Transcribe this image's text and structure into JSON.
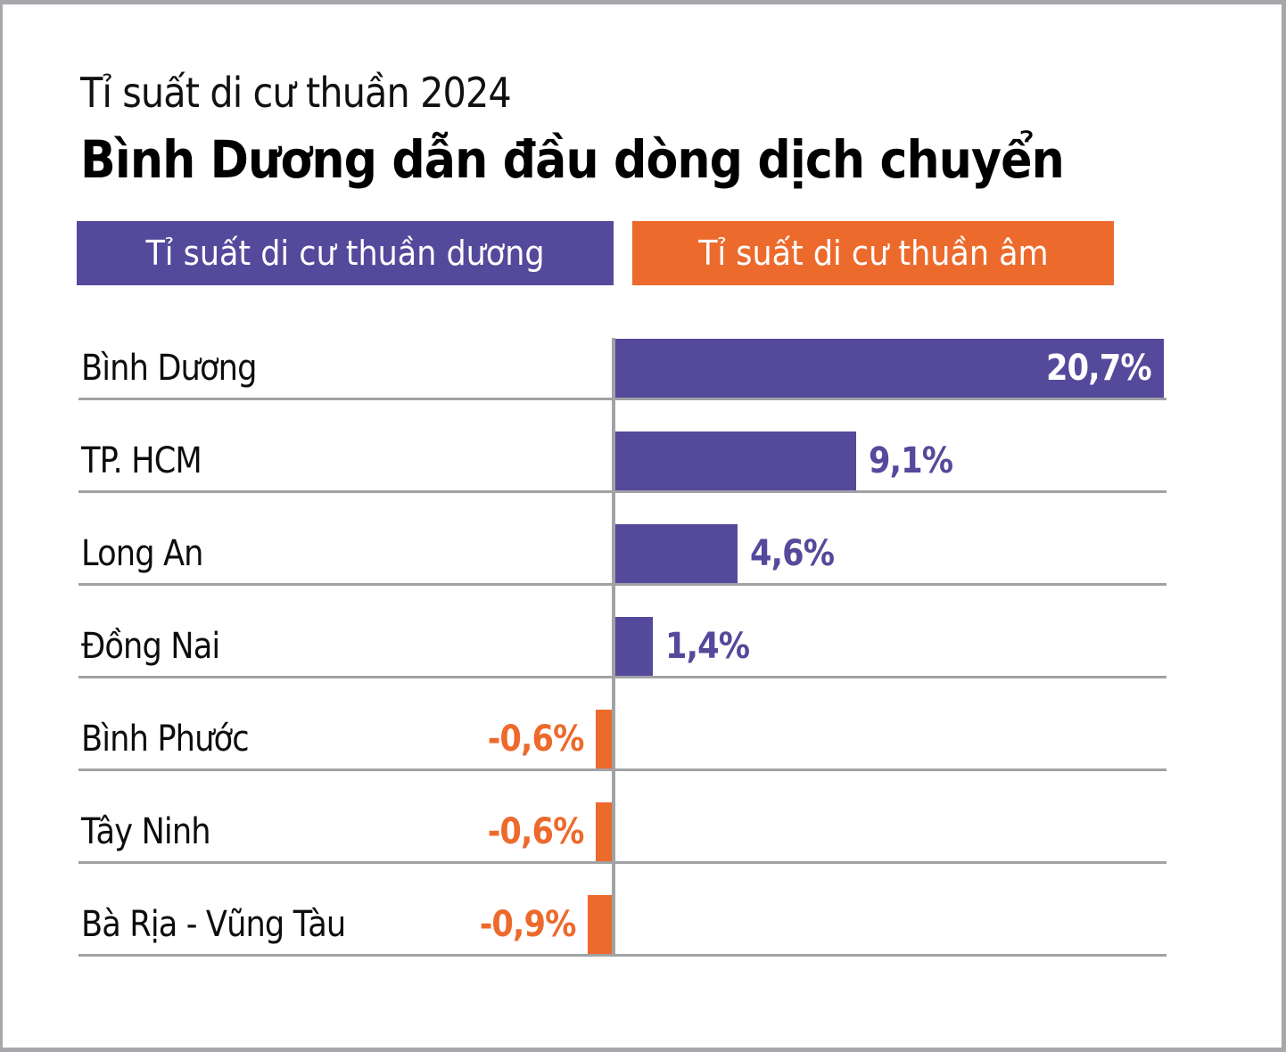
{
  "header": {
    "subtitle": "Tỉ suất di cư thuần 2024",
    "title": "Bình Dương dẫn đầu dòng dịch chuyển"
  },
  "legend": {
    "positive_label": "Tỉ suất di cư thuần dương",
    "negative_label": "Tỉ suất di cư thuần âm"
  },
  "colors": {
    "positive": "#54499B",
    "negative": "#ED6A2D",
    "grid_line": "#A0A2A5",
    "frame_border": "#A6A8AB",
    "text": "#0D0D0D",
    "value_inside": "#FFFFFF"
  },
  "chart_data": {
    "type": "bar",
    "orientation": "horizontal",
    "title": "Bình Dương dẫn đầu dòng dịch chuyển",
    "subtitle": "Tỉ suất di cư thuần 2024",
    "categories": [
      "Bình Dương",
      "TP. HCM",
      "Long An",
      "Đồng Nai",
      "Bình Phước",
      "Tây Ninh",
      "Bà Rịa - Vũng Tàu"
    ],
    "values": [
      20.7,
      9.1,
      4.6,
      1.4,
      -0.6,
      -0.6,
      -0.9
    ],
    "value_labels": [
      "20,7%",
      "9,1%",
      "4,6%",
      "1,4%",
      "-0,6%",
      "-0,6%",
      "-0,9%"
    ],
    "series": [
      {
        "name": "Tỉ suất di cư thuần dương",
        "color": "#54499B",
        "members": [
          "Bình Dương",
          "TP. HCM",
          "Long An",
          "Đồng Nai"
        ]
      },
      {
        "name": "Tỉ suất di cư thuần âm",
        "color": "#ED6A2D",
        "members": [
          "Bình Phước",
          "Tây Ninh",
          "Bà Rịa - Vũng Tàu"
        ]
      }
    ],
    "xlim": [
      -0.9,
      20.7
    ],
    "unit": "%",
    "grid": "horizontal row separators with vertical zero axis",
    "legend_position": "top",
    "value_label_style": "largest bar labeled inside in white; positive bars labeled right; negative bars labeled left of bar"
  }
}
